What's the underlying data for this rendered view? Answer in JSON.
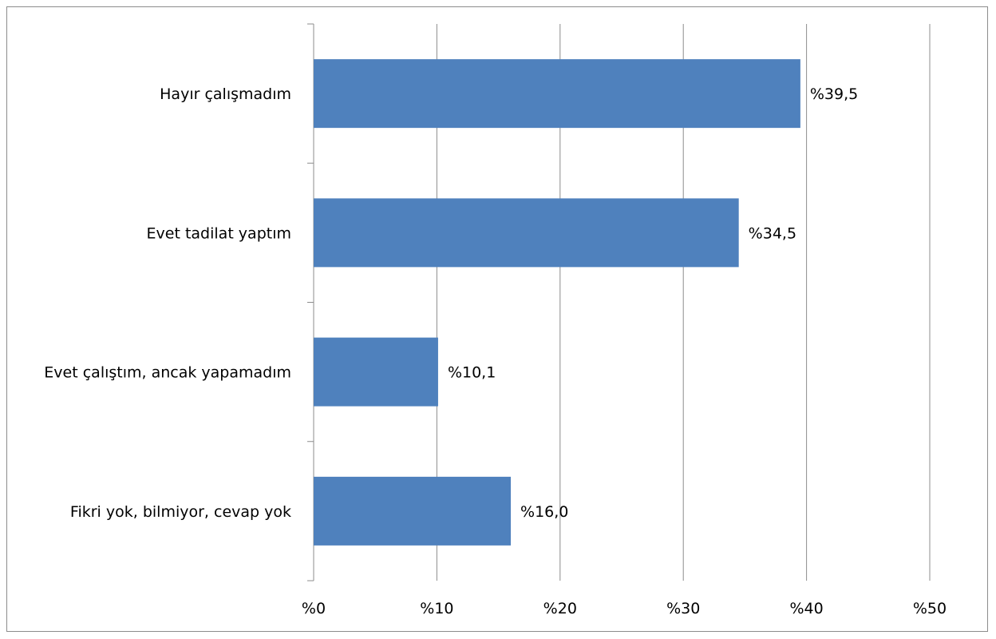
{
  "chart_data": {
    "type": "bar",
    "orientation": "horizontal",
    "categories": [
      "Hayır çalışmadım",
      "Evet tadilat yaptım",
      "Evet çalıştım, ancak yapamadım",
      "Fikri yok, bilmiyor, cevap yok"
    ],
    "values": [
      39.5,
      34.5,
      10.1,
      16.0
    ],
    "data_labels": [
      "%39,5",
      "%34,5",
      "%10,1",
      "%16,0"
    ],
    "x_ticks": [
      0,
      10,
      20,
      30,
      40,
      50
    ],
    "x_tick_labels": [
      "%0",
      "%10",
      "%20",
      "%30",
      "%40",
      "%50"
    ],
    "xlim": [
      0,
      50
    ],
    "grid": "vertical major gridlines",
    "legend": "none",
    "title": "",
    "xlabel": "",
    "ylabel": "",
    "bar_color": "#4f81bd",
    "grid_color": "#8c8c8c"
  }
}
